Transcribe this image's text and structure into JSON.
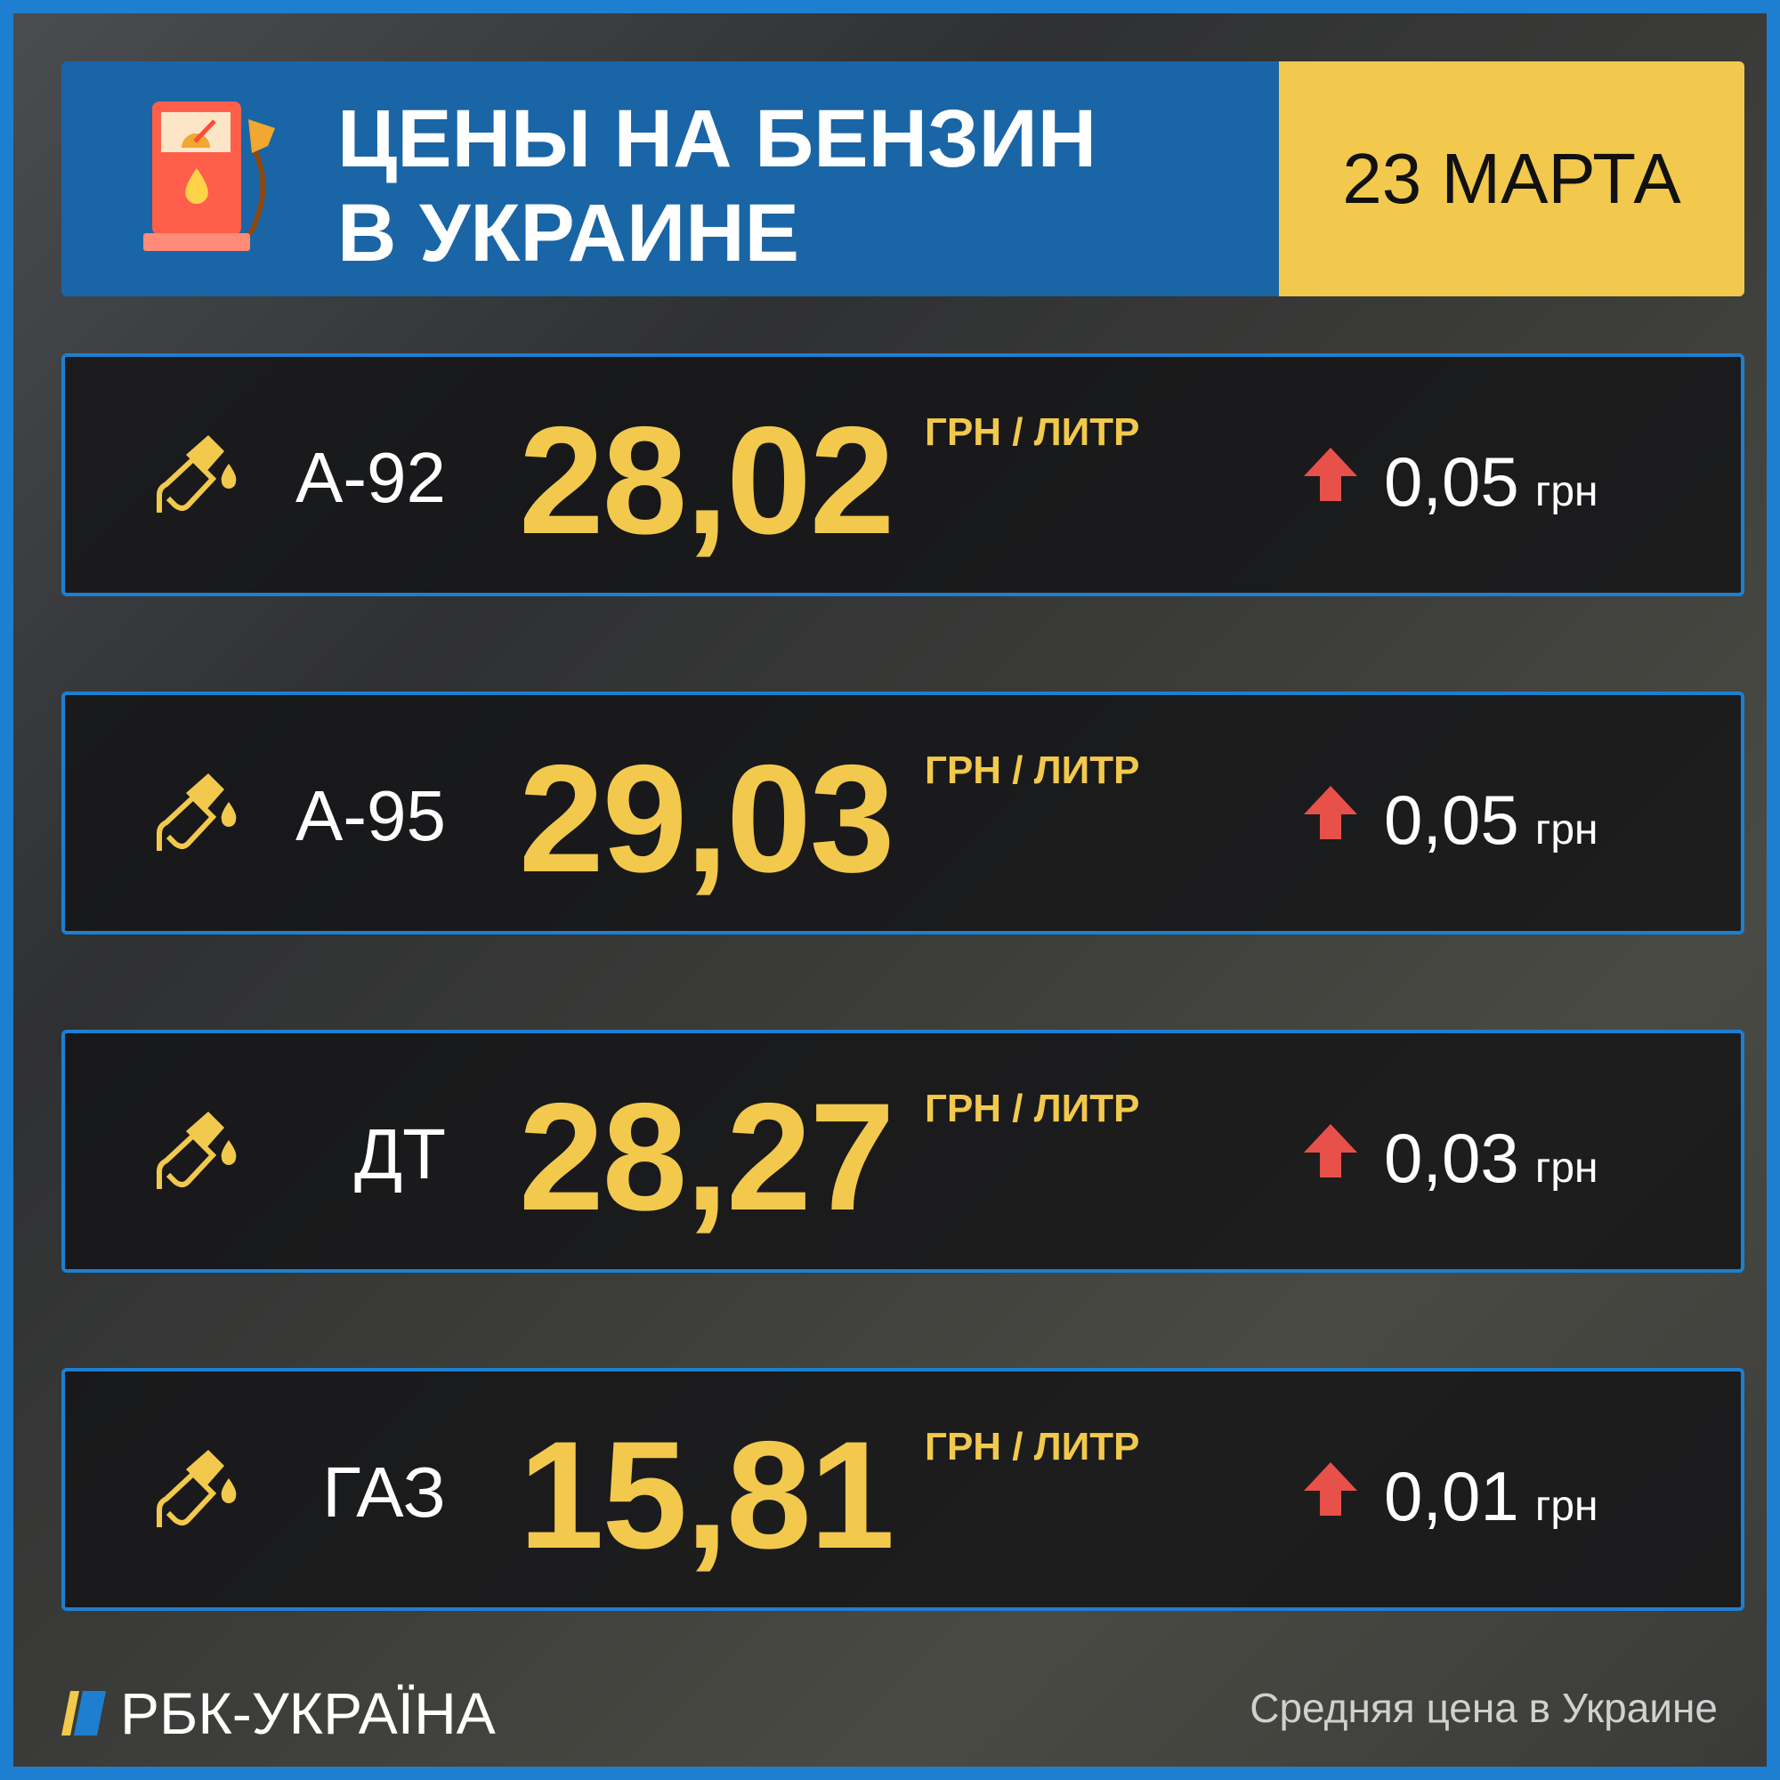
{
  "header": {
    "title_line1": "ЦЕНЫ НА БЕНЗИН",
    "title_line2": "В УКРАИНЕ",
    "date": "23 МАРТА",
    "icon": "fuel-pump-icon"
  },
  "colors": {
    "accent_blue": "#1e7fd0",
    "header_blue": "#1a65a6",
    "yellow": "#f2c94c",
    "up_red": "#e8504a"
  },
  "fuels": [
    {
      "label": "А-92",
      "price": "28,02",
      "unit": "ГРН / ЛИТР",
      "change": "0,05",
      "change_unit": "грн",
      "direction": "up"
    },
    {
      "label": "А-95",
      "price": "29,03",
      "unit": "ГРН / ЛИТР",
      "change": "0,05",
      "change_unit": "грн",
      "direction": "up"
    },
    {
      "label": "ДТ",
      "price": "28,27",
      "unit": "ГРН / ЛИТР",
      "change": "0,03",
      "change_unit": "грн",
      "direction": "up"
    },
    {
      "label": "ГАЗ",
      "price": "15,81",
      "unit": "ГРН / ЛИТР",
      "change": "0,01",
      "change_unit": "грн",
      "direction": "up"
    }
  ],
  "footer": {
    "brand": "РБК-УКРАЇНА",
    "note": "Средняя цена в Украине"
  }
}
